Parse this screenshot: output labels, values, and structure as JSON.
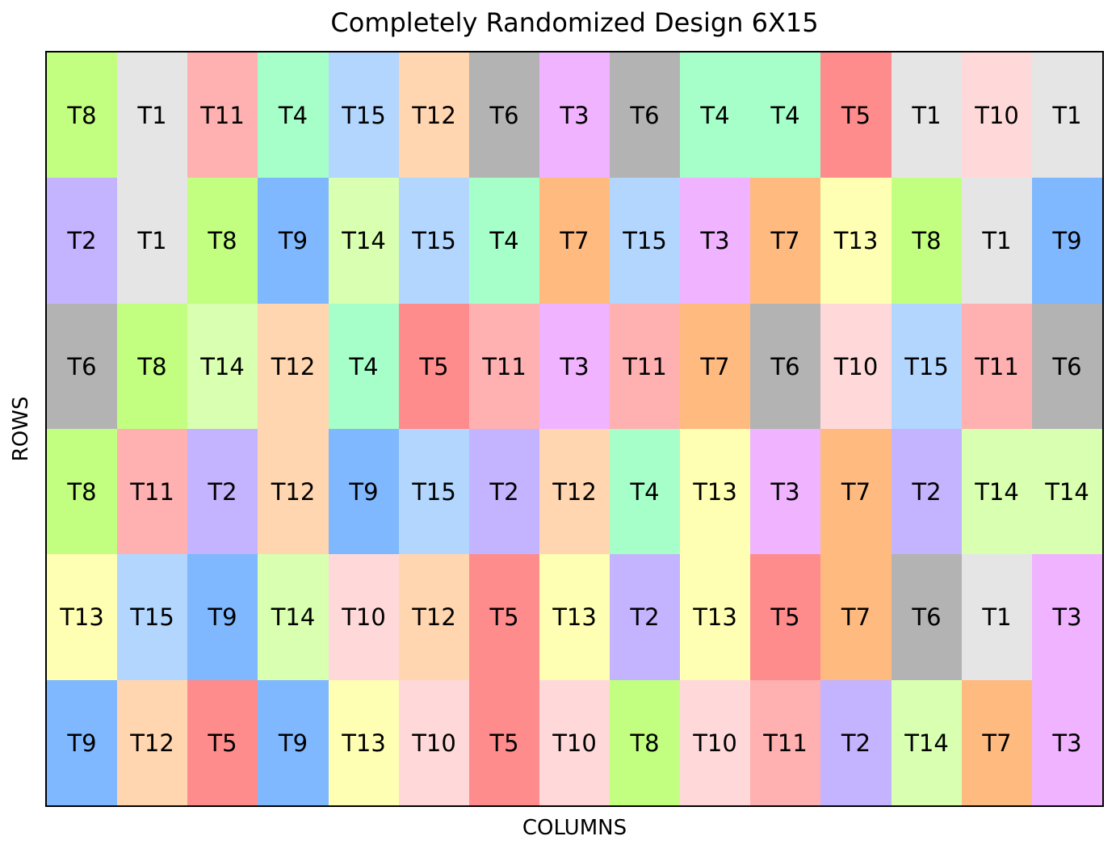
{
  "chart_data": {
    "type": "heatmap",
    "title": "Completely Randomized Design 6X15",
    "xlabel": "COLUMNS",
    "ylabel": "ROWS",
    "n_rows": 6,
    "n_cols": 15,
    "cells": [
      [
        "T8",
        "T1",
        "T11",
        "T4",
        "T15",
        "T12",
        "T6",
        "T3",
        "T6",
        "T4",
        "T4",
        "T5",
        "T1",
        "T10",
        "T1"
      ],
      [
        "T2",
        "T1",
        "T8",
        "T9",
        "T14",
        "T15",
        "T4",
        "T7",
        "T15",
        "T3",
        "T7",
        "T13",
        "T8",
        "T1",
        "T9"
      ],
      [
        "T6",
        "T8",
        "T14",
        "T12",
        "T4",
        "T5",
        "T11",
        "T3",
        "T11",
        "T7",
        "T6",
        "T10",
        "T15",
        "T11",
        "T6"
      ],
      [
        "T8",
        "T11",
        "T2",
        "T12",
        "T9",
        "T15",
        "T2",
        "T12",
        "T4",
        "T13",
        "T3",
        "T7",
        "T2",
        "T14",
        "T14"
      ],
      [
        "T13",
        "T15",
        "T9",
        "T14",
        "T10",
        "T12",
        "T5",
        "T13",
        "T2",
        "T13",
        "T5",
        "T7",
        "T6",
        "T1",
        "T3"
      ],
      [
        "T9",
        "T12",
        "T5",
        "T9",
        "T13",
        "T10",
        "T5",
        "T10",
        "T8",
        "T10",
        "T11",
        "T2",
        "T14",
        "T7",
        "T3"
      ]
    ],
    "treatment_colors": {
      "T1": "#e5e5e5",
      "T2": "#c4b3ff",
      "T3": "#f0b3ff",
      "T4": "#a6ffc9",
      "T5": "#ff8c8c",
      "T6": "#b3b3b3",
      "T7": "#ffba80",
      "T8": "#c2ff80",
      "T9": "#80b8ff",
      "T10": "#ffd9d9",
      "T11": "#ffb0b0",
      "T12": "#ffd6b0",
      "T13": "#ffffb3",
      "T14": "#d9ffb0",
      "T15": "#b3d6ff"
    }
  }
}
